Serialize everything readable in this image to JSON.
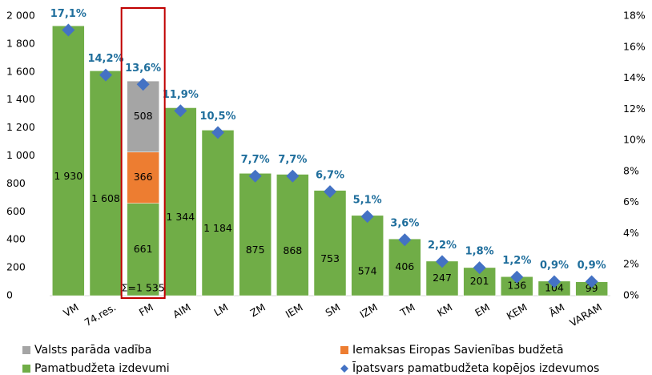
{
  "chart_data": {
    "type": "bar",
    "categories": [
      "VM",
      "74.res.",
      "FM",
      "AIM",
      "LM",
      "ZM",
      "IEM",
      "SM",
      "IZM",
      "TM",
      "KM",
      "EM",
      "KEM",
      "ĀM",
      "VARAM"
    ],
    "series": [
      {
        "name": "Pamatbudžeta izdevumi",
        "color": "#70ad47",
        "values": [
          1930,
          1608,
          661,
          1344,
          1184,
          875,
          868,
          753,
          574,
          406,
          247,
          201,
          136,
          104,
          99
        ],
        "value_labels": [
          "1 930",
          "1 608",
          "661",
          "1 344",
          "1 184",
          "875",
          "868",
          "753",
          "574",
          "406",
          "247",
          "201",
          "136",
          "104",
          "99"
        ]
      },
      {
        "name": "Iemaksas Eiropas Savienības budžetā",
        "color": "#ed7d31",
        "values": [
          null,
          null,
          366,
          null,
          null,
          null,
          null,
          null,
          null,
          null,
          null,
          null,
          null,
          null,
          null
        ]
      },
      {
        "name": "Valsts parāda vadība",
        "color": "#a5a5a5",
        "values": [
          null,
          null,
          508,
          null,
          null,
          null,
          null,
          null,
          null,
          null,
          null,
          null,
          null,
          null,
          null
        ]
      },
      {
        "name": "Īpatsvars pamatbudžeta kopējos izdevumos",
        "color": "#4472c4",
        "axis": "y2",
        "type": "scatter",
        "values": [
          17.1,
          14.2,
          13.6,
          11.9,
          10.5,
          7.7,
          7.7,
          6.7,
          5.1,
          3.6,
          2.2,
          1.8,
          1.2,
          0.9,
          0.9
        ],
        "value_labels": [
          "17,1%",
          "14,2%",
          "13,6%",
          "11,9%",
          "10,5%",
          "7,7%",
          "7,7%",
          "6,7%",
          "5,1%",
          "3,6%",
          "2,2%",
          "1,8%",
          "1,2%",
          "0,9%",
          "0,9%"
        ]
      }
    ],
    "annotations": [
      "Σ=1 535"
    ],
    "ylim": [
      0,
      2000
    ],
    "yticks": [
      0,
      200,
      400,
      600,
      800,
      {
        "value": 1000,
        "label": "1 000"
      },
      {
        "value": 1200,
        "label": "1 200"
      },
      {
        "value": 1400,
        "label": "1 400"
      },
      {
        "value": 1600,
        "label": "1 600"
      },
      {
        "value": 1800,
        "label": "1 800"
      },
      {
        "value": 2000,
        "label": "2 000"
      }
    ],
    "y2lim": [
      0,
      18
    ],
    "y2ticks": [
      {
        "value": 0,
        "label": "0%"
      },
      {
        "value": 2,
        "label": "2%"
      },
      {
        "value": 4,
        "label": "4%"
      },
      {
        "value": 6,
        "label": "6%"
      },
      {
        "value": 8,
        "label": "8%"
      },
      {
        "value": 10,
        "label": "10%"
      },
      {
        "value": 12,
        "label": "12%"
      },
      {
        "value": 14,
        "label": "14%"
      },
      {
        "value": 16,
        "label": "16%"
      },
      {
        "value": 18,
        "label": "18%"
      }
    ],
    "grid": false
  }
}
